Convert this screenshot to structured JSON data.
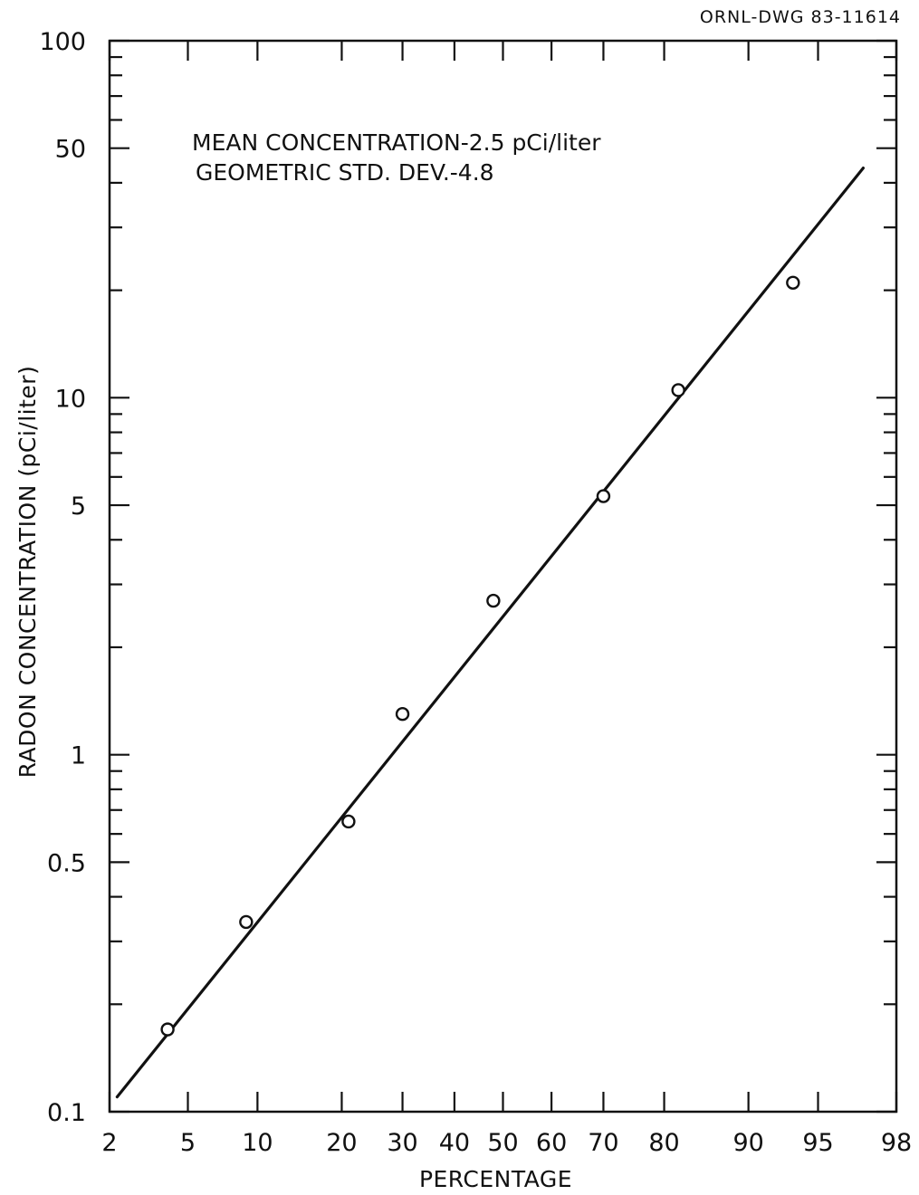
{
  "drawing_id": "ORNL-DWG 83-11614",
  "chart_data": {
    "type": "scatter",
    "xlabel": "PERCENTAGE",
    "ylabel": "RADON CONCENTRATION (pCi/liter)",
    "x_scale": "probability",
    "y_scale": "log",
    "xlim": [
      2,
      98
    ],
    "ylim": [
      0.1,
      100
    ],
    "x_ticks": [
      2,
      5,
      10,
      20,
      30,
      40,
      50,
      60,
      70,
      80,
      90,
      95,
      98
    ],
    "x_tick_labels": [
      "2",
      "5",
      "10",
      "20",
      "30",
      "40",
      "50",
      "60",
      "70",
      "80",
      "90",
      "95",
      "98"
    ],
    "y_ticks": [
      0.1,
      0.5,
      1,
      5,
      10,
      50,
      100
    ],
    "y_tick_labels": [
      "0.1",
      "0.5",
      "1",
      "5",
      "10",
      "50",
      "100"
    ],
    "annotations": [
      "MEAN CONCENTRATION-2.5 pCi/liter",
      "GEOMETRIC STD. DEV.-4.8"
    ],
    "grid": false,
    "series": [
      {
        "type": "scatter",
        "marker": "open-circle",
        "points": [
          {
            "x": 4,
            "y": 0.17
          },
          {
            "x": 9,
            "y": 0.34
          },
          {
            "x": 21,
            "y": 0.65
          },
          {
            "x": 30,
            "y": 1.3
          },
          {
            "x": 48,
            "y": 2.7
          },
          {
            "x": 70,
            "y": 5.3
          },
          {
            "x": 82,
            "y": 10.5
          },
          {
            "x": 93.5,
            "y": 21
          }
        ]
      },
      {
        "type": "line",
        "points": [
          {
            "x": 2.2,
            "y": 0.11
          },
          {
            "x": 97,
            "y": 44
          }
        ]
      }
    ]
  }
}
